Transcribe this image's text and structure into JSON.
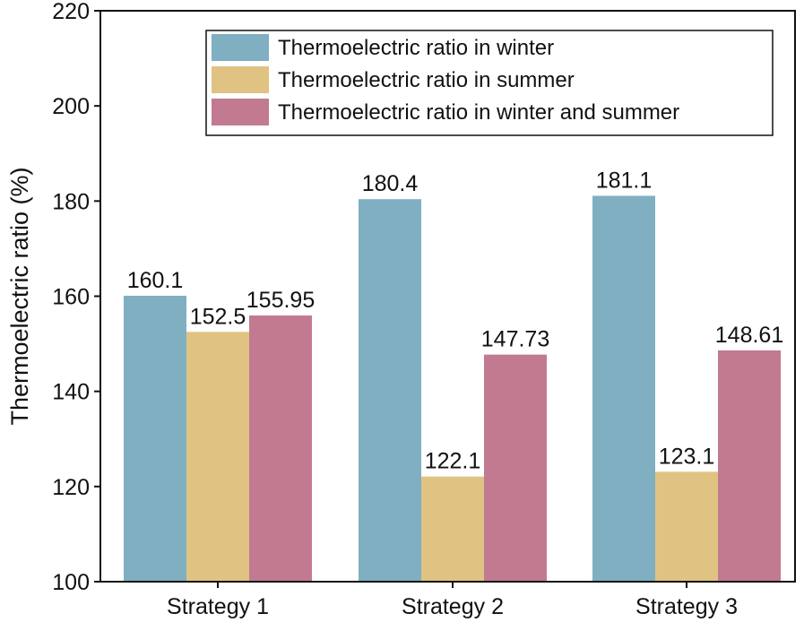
{
  "chart_data": {
    "type": "bar",
    "title": "",
    "xlabel": "",
    "ylabel": "Thermoelectric ratio (%)",
    "ylim": [
      100,
      220
    ],
    "yticks": [
      100,
      120,
      140,
      160,
      180,
      200,
      220
    ],
    "categories": [
      "Strategy 1",
      "Strategy 2",
      "Strategy 3"
    ],
    "series": [
      {
        "name": "Thermoelectric ratio in winter",
        "color": "#7fafc1",
        "values": [
          160.1,
          180.4,
          181.1
        ],
        "labels": [
          "160.1",
          "180.4",
          "181.1"
        ]
      },
      {
        "name": "Thermoelectric ratio in summer",
        "color": "#e0c382",
        "values": [
          152.5,
          122.1,
          123.1
        ],
        "labels": [
          "152.5",
          "122.1",
          "123.1"
        ]
      },
      {
        "name": "Thermoelectric ratio in winter and summer",
        "color": "#c27a91",
        "values": [
          155.95,
          147.73,
          148.61
        ],
        "labels": [
          "155.95",
          "147.73",
          "148.61"
        ]
      }
    ],
    "legend_position": "top-right",
    "grid": false
  }
}
